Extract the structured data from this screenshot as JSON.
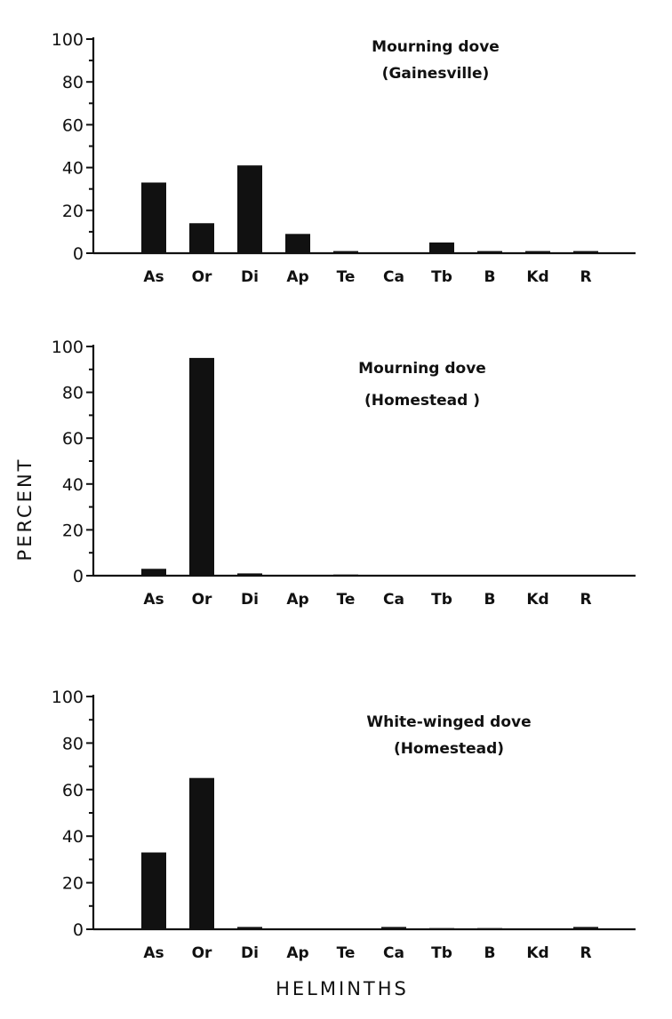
{
  "chart_data": [
    {
      "type": "bar",
      "title": [
        "Mourning dove",
        "(Gainesville)"
      ],
      "categories": [
        "As",
        "Or",
        "Di",
        "Ap",
        "Te",
        "Ca",
        "Tb",
        "B",
        "Kd",
        "R"
      ],
      "values": [
        33,
        14,
        41,
        9,
        1,
        0,
        5,
        1,
        1,
        1
      ],
      "ylim": [
        0,
        100
      ],
      "yticks": [
        "0",
        "20",
        "40",
        "60",
        "80",
        "100"
      ]
    },
    {
      "type": "bar",
      "title": [
        "Mourning dove",
        "(Homestead )"
      ],
      "categories": [
        "As",
        "Or",
        "Di",
        "Ap",
        "Te",
        "Ca",
        "Tb",
        "B",
        "Kd",
        "R"
      ],
      "values": [
        3,
        95,
        1,
        0,
        0.5,
        0,
        0,
        0,
        0,
        0
      ],
      "ylim": [
        0,
        100
      ],
      "yticks": [
        "0",
        "20",
        "40",
        "60",
        "80",
        "100"
      ]
    },
    {
      "type": "bar",
      "title": [
        "White-winged dove",
        "(Homestead)"
      ],
      "categories": [
        "As",
        "Or",
        "Di",
        "Ap",
        "Te",
        "Ca",
        "Tb",
        "B",
        "Kd",
        "R"
      ],
      "values": [
        33,
        65,
        1,
        0,
        0,
        1,
        0.5,
        0.5,
        0,
        1
      ],
      "ylim": [
        0,
        100
      ],
      "yticks": [
        "0",
        "20",
        "40",
        "60",
        "80",
        "100"
      ]
    }
  ],
  "axes": {
    "ylabel": "PERCENT",
    "xlabel": "HELMINTHS"
  }
}
